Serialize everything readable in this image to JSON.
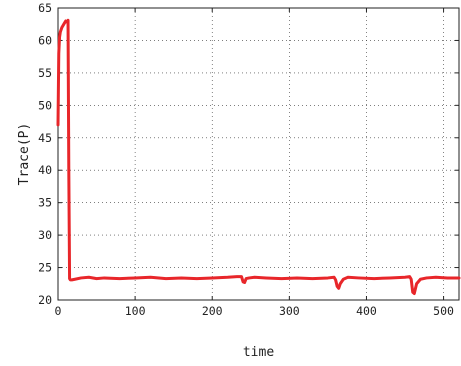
{
  "chart_data": {
    "type": "line",
    "xlabel": "time",
    "ylabel": "Trace(P)",
    "xlim": [
      0,
      520
    ],
    "ylim": [
      20,
      65
    ],
    "xticks": [
      0,
      100,
      200,
      300,
      400,
      500
    ],
    "yticks": [
      20,
      25,
      30,
      35,
      40,
      45,
      50,
      55,
      60,
      65
    ],
    "grid": true,
    "line_color": "#e8262a",
    "series": [
      {
        "x": [
          0,
          1,
          2,
          3,
          5,
          8,
          10,
          12,
          13,
          14,
          15,
          16,
          18,
          22,
          30,
          40,
          50,
          60,
          80,
          100,
          120,
          140,
          160,
          180,
          200,
          220,
          232,
          238,
          240,
          242,
          244,
          248,
          255,
          270,
          290,
          310,
          330,
          350,
          358,
          360,
          362,
          364,
          366,
          370,
          376,
          390,
          410,
          430,
          450,
          456,
          458,
          460,
          462,
          465,
          470,
          478,
          490,
          505,
          520
        ],
        "y": [
          47,
          58,
          60.5,
          61.3,
          62,
          62.6,
          63,
          62.8,
          63.1,
          40,
          23.3,
          23.1,
          23.1,
          23.2,
          23.4,
          23.5,
          23.3,
          23.4,
          23.3,
          23.4,
          23.5,
          23.3,
          23.4,
          23.3,
          23.4,
          23.5,
          23.6,
          23.6,
          22.8,
          22.7,
          23.3,
          23.4,
          23.5,
          23.4,
          23.3,
          23.4,
          23.3,
          23.4,
          23.5,
          23.1,
          22.1,
          21.8,
          22.5,
          23.2,
          23.5,
          23.4,
          23.3,
          23.4,
          23.5,
          23.6,
          23.2,
          21.2,
          21.0,
          22.5,
          23.2,
          23.4,
          23.5,
          23.4,
          23.4
        ]
      }
    ]
  }
}
